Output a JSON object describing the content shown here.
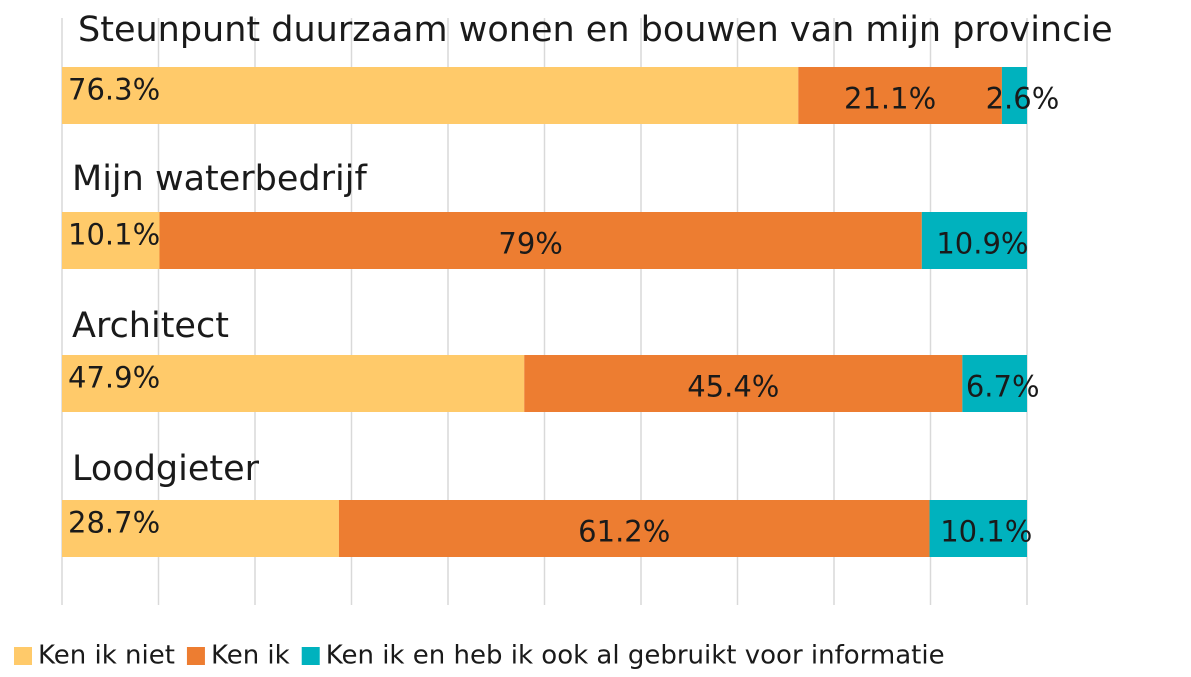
{
  "chart_data": {
    "type": "stacked_barh",
    "categories": [
      "Steunpunt duurzaam wonen en bouwen van mijn provincie",
      "Mijn waterbedrijf",
      "Architect",
      "Loodgieter"
    ],
    "series": [
      {
        "name": "Ken ik niet",
        "color": "#ffca6a",
        "values": [
          76.3,
          10.1,
          47.9,
          28.7
        ],
        "value_labels": [
          "76.3%",
          "10.1%",
          "47.9%",
          "28.7%"
        ]
      },
      {
        "name": "Ken ik",
        "color": "#ed7d31",
        "values": [
          21.1,
          79,
          45.4,
          61.2
        ],
        "value_labels": [
          "21.1%",
          "79%",
          "45.4%",
          "61.2%"
        ]
      },
      {
        "name": "Ken ik en heb ik ook al gebruikt voor informatie",
        "color": "#00b2be",
        "values": [
          2.6,
          10.9,
          6.7,
          10.1
        ],
        "value_labels": [
          "2.6%",
          "10.9%",
          "6.7%",
          "10.1%"
        ]
      }
    ],
    "xlim": [
      0,
      100
    ],
    "xticks": [
      0,
      10,
      20,
      30,
      40,
      50,
      60,
      70,
      80,
      90,
      100
    ],
    "grid": true,
    "legend": "bottom"
  }
}
